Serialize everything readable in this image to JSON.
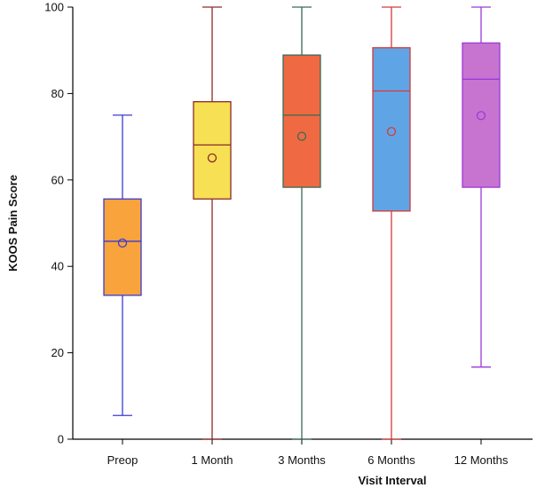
{
  "chart_data": {
    "type": "box",
    "xlabel": "Visit Interval",
    "ylabel": "KOOS Pain Score",
    "ylim": [
      0,
      100
    ],
    "yticks": [
      0,
      20,
      40,
      60,
      80,
      100
    ],
    "grid": false,
    "categories": [
      "Preop",
      "1 Month",
      "3 Months",
      "6 Months",
      "12 Months"
    ],
    "boxes": [
      {
        "category": "Preop",
        "min": 5.5,
        "q1": 33.3,
        "median": 45.8,
        "q3": 55.6,
        "max": 75,
        "mean": 45.4,
        "fill": "#f8a33c",
        "line": "#3b3bd1"
      },
      {
        "category": "1 Month",
        "min": 0,
        "q1": 55.6,
        "median": 68.1,
        "q3": 78.1,
        "max": 100,
        "mean": 65.1,
        "fill": "#f7e053",
        "line": "#8b2b2b"
      },
      {
        "category": "3 Months",
        "min": 0,
        "q1": 58.3,
        "median": 75.0,
        "q3": 88.9,
        "max": 100,
        "mean": 70.1,
        "fill": "#ef6a42",
        "line": "#3a6a55"
      },
      {
        "category": "6 Months",
        "min": 0,
        "q1": 52.8,
        "median": 80.6,
        "q3": 90.6,
        "max": 100,
        "mean": 71.2,
        "fill": "#5fa5e6",
        "line": "#d43a3a"
      },
      {
        "category": "12 Months",
        "min": 16.7,
        "q1": 58.3,
        "median": 83.3,
        "q3": 91.7,
        "max": 100,
        "mean": 74.9,
        "fill": "#c774d0",
        "line": "#9b3ad8"
      }
    ]
  }
}
